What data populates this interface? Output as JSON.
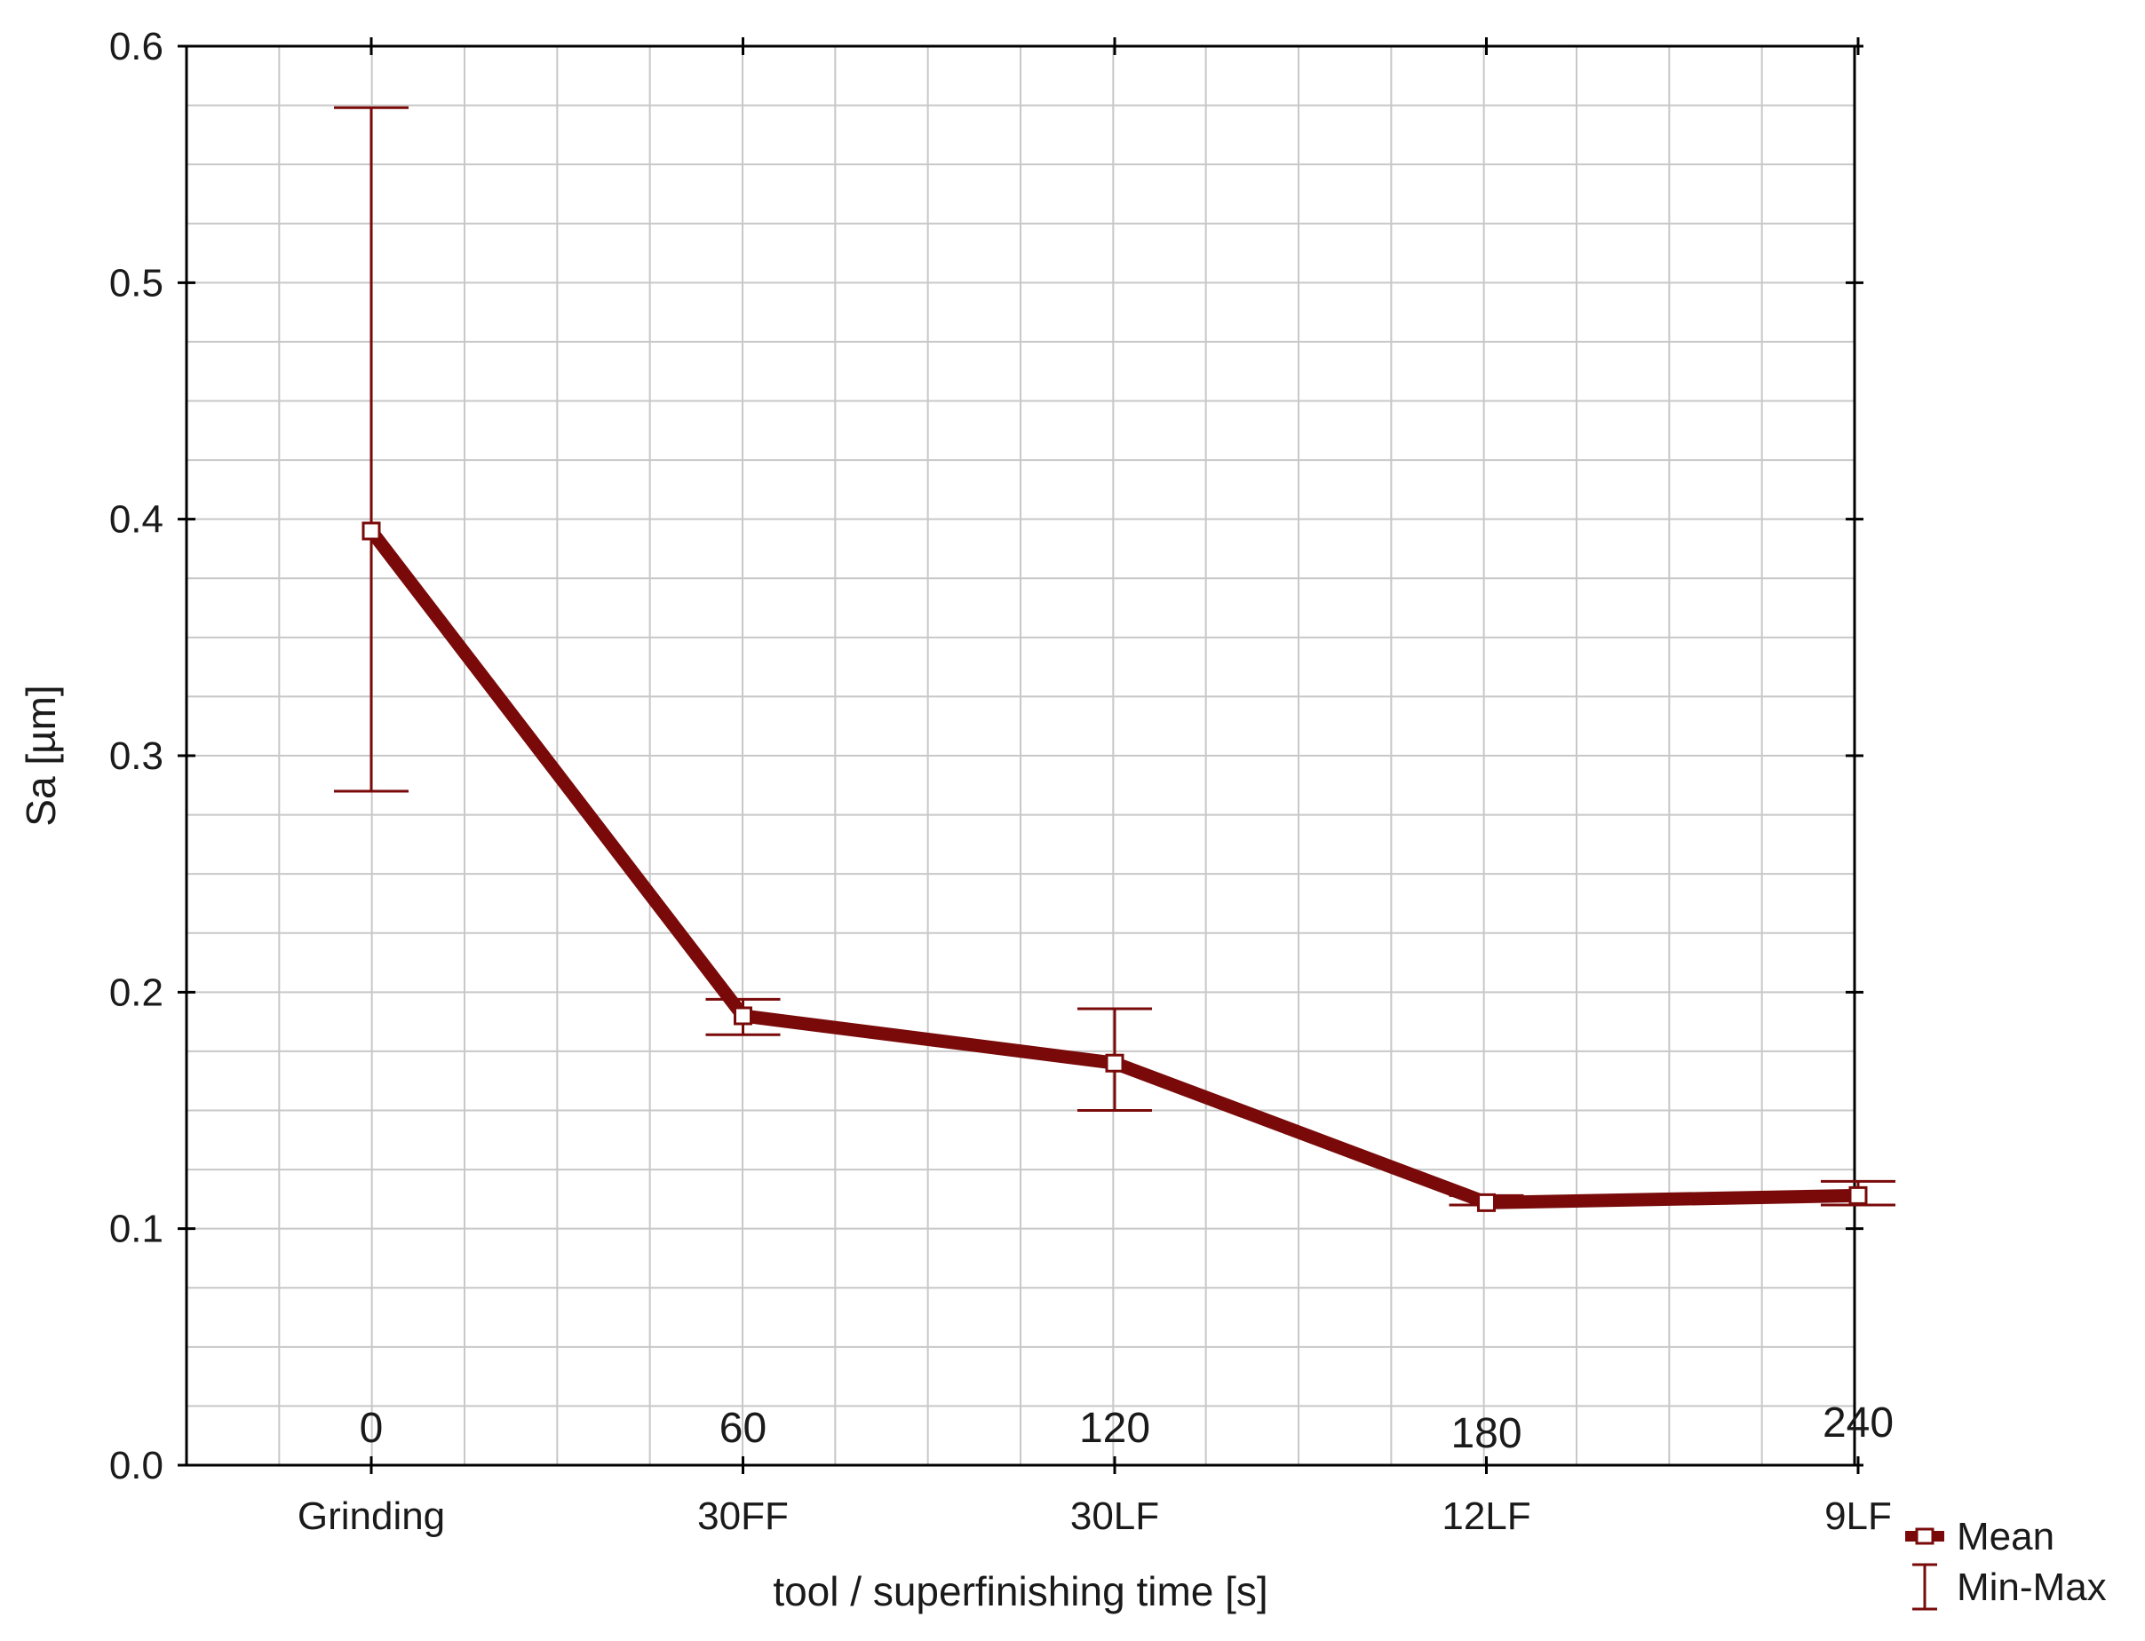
{
  "chart_data": {
    "type": "line",
    "title": "",
    "xlabel": "tool / superfinishing time [s]",
    "ylabel": "Sa [µm]",
    "categories": [
      "Grinding",
      "30FF",
      "30LF",
      "12LF",
      "9LF"
    ],
    "time_labels": [
      "0",
      "60",
      "120",
      "180",
      "240"
    ],
    "ylim": [
      0,
      0.6
    ],
    "yticks": [
      "0.0",
      "0.1",
      "0.2",
      "0.3",
      "0.4",
      "0.5",
      "0.6"
    ],
    "grid": true,
    "legend_position": "bottom-right",
    "series": [
      {
        "name": "Mean",
        "values": [
          0.395,
          0.19,
          0.17,
          0.111,
          0.114
        ],
        "min": [
          0.285,
          0.182,
          0.15,
          0.11,
          0.11
        ],
        "max": [
          0.574,
          0.197,
          0.193,
          0.114,
          0.12
        ]
      }
    ],
    "legend": {
      "mean_label": "Mean",
      "range_label": "Min-Max"
    },
    "colors": {
      "series": "#7a0a0a",
      "grid": "#c8c8c8",
      "axis": "#000000"
    }
  }
}
